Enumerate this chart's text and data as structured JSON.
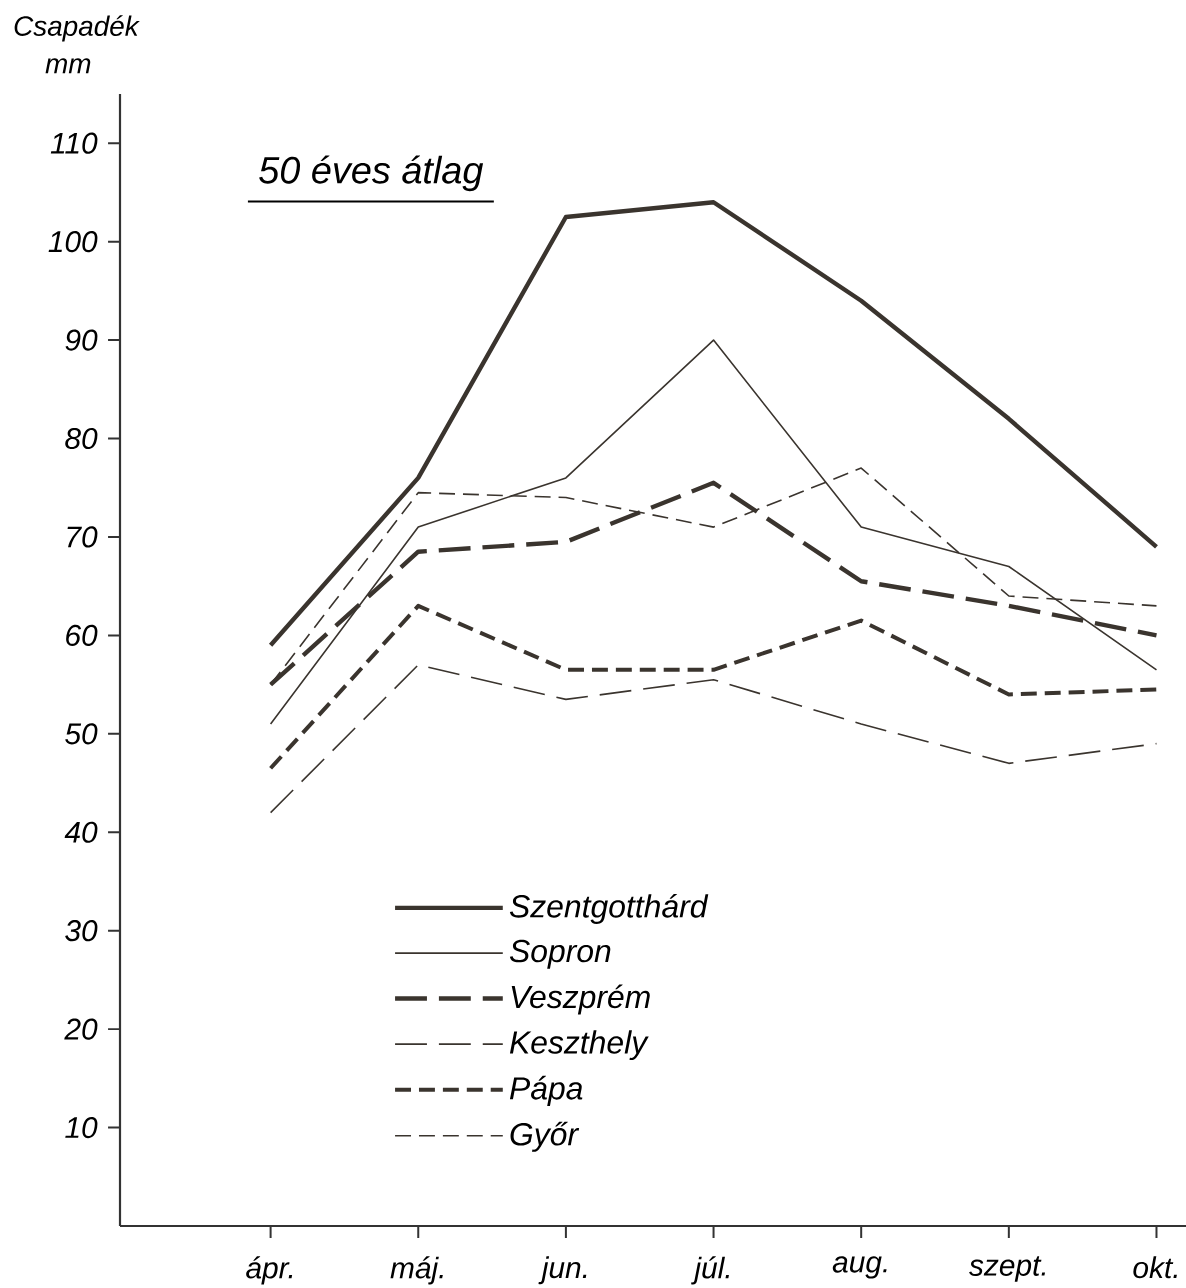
{
  "chart_data": {
    "type": "line",
    "title": "50 éves átlag",
    "ylabel": "Csapadék",
    "annotations": [
      "mm"
    ],
    "categories": [
      "ápr.",
      "máj.",
      "jun.",
      "júl.",
      "aug.",
      "szept.",
      "okt."
    ],
    "ylim": [
      0,
      115
    ],
    "yticks": [
      10,
      20,
      30,
      40,
      50,
      60,
      70,
      80,
      90,
      100,
      110
    ],
    "grid": false,
    "legend": "bottom",
    "marker": "none",
    "series": [
      {
        "name": "Szentgotthárd",
        "color": "#3a342e",
        "line_style": "solid",
        "values": [
          59,
          76,
          102.5,
          104,
          94,
          82,
          69
        ]
      },
      {
        "name": "Sopron",
        "color": "#3a342e",
        "line_style": "solid",
        "values": [
          51,
          71,
          76,
          90,
          71,
          67,
          56.5
        ]
      },
      {
        "name": "Veszprém",
        "color": "#3a342e",
        "line_style": "dashed",
        "values": [
          55,
          68.5,
          69.5,
          75.5,
          65.5,
          63,
          60
        ]
      },
      {
        "name": "Keszthely",
        "color": "#3a342e",
        "line_style": "dashed",
        "values": [
          42,
          57,
          53.5,
          55.5,
          51,
          47,
          49
        ]
      },
      {
        "name": "Pápa",
        "color": "#3a342e",
        "line_style": "dashed",
        "values": [
          46.5,
          63,
          56.5,
          56.5,
          61.5,
          54,
          54.5
        ]
      },
      {
        "name": "Győr",
        "color": "#3a342e",
        "line_style": "dashed",
        "values": [
          55,
          74.5,
          74,
          71,
          77,
          64,
          63
        ]
      }
    ]
  }
}
